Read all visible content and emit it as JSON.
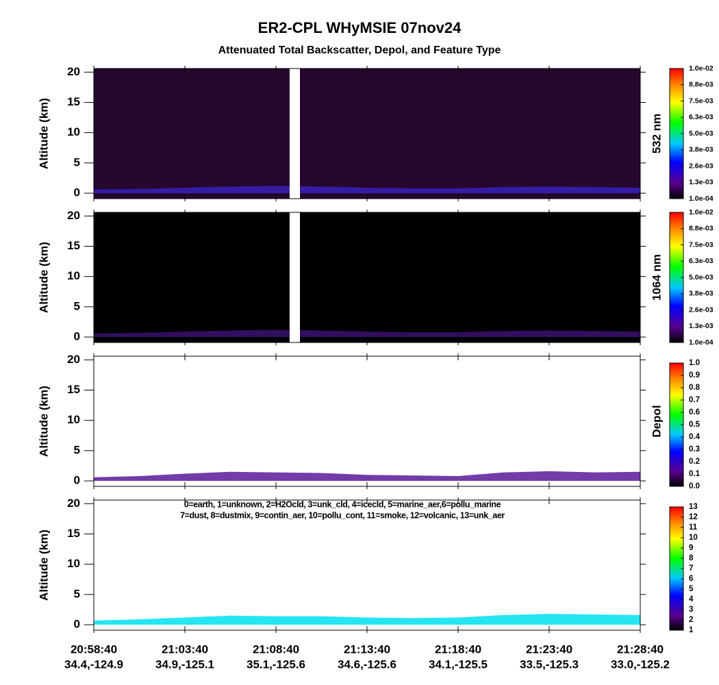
{
  "chart_data": {
    "title": "ER2-CPL WHyMSIE 07nov24",
    "subtitle": "Attenuated Total Backscatter, Depol, and Feature Type",
    "xlim": [
      "20:58:40",
      "21:28:40"
    ],
    "xticks": [
      "20:58:40",
      "21:03:40",
      "21:08:40",
      "21:13:40",
      "21:18:40",
      "21:23:40",
      "21:28:40"
    ],
    "xtick_locations": [
      "34.4,-124.9",
      "34.9,-125.1",
      "35.1,-125.6",
      "34.6,-125.6",
      "34.1,-125.5",
      "33.5,-125.3",
      "33.0,-125.2"
    ],
    "panels": [
      {
        "type": "curtain",
        "ylabel": "Altitude (km)",
        "ylim": [
          -0.9,
          20.6
        ],
        "yticks": [
          0,
          5,
          10,
          15,
          20
        ],
        "background": "#24082e",
        "data_gap": [
          "21:09:25",
          "21:09:59"
        ],
        "colorbar": {
          "label": "532 nm",
          "clim": [
            0.0001,
            0.01
          ],
          "ticks": [
            {
              "value": 0.0001,
              "label": "1.0e-04"
            },
            {
              "value": 0.0013375,
              "label": "1.3e-03"
            },
            {
              "value": 0.002575,
              "label": "2.6e-03"
            },
            {
              "value": 0.0038125,
              "label": "3.8e-03"
            },
            {
              "value": 0.00505,
              "label": "5.0e-03"
            },
            {
              "value": 0.0062875,
              "label": "6.3e-03"
            },
            {
              "value": 0.007525,
              "label": "7.5e-03"
            },
            {
              "value": 0.0087625,
              "label": "8.8e-03"
            },
            {
              "value": 0.01,
              "label": "1.0e-02"
            }
          ]
        },
        "layer": {
          "color": "#3a20b8",
          "x": [
            "20:58:40",
            "21:01:10",
            "21:03:40",
            "21:06:10",
            "21:08:40",
            "21:11:10",
            "21:13:40",
            "21:16:10",
            "21:18:40",
            "21:21:10",
            "21:23:40",
            "21:26:10",
            "21:28:40"
          ],
          "values": [
            0.6,
            0.7,
            0.9,
            1.1,
            1.2,
            1.1,
            0.9,
            0.8,
            0.8,
            1.0,
            1.1,
            1.0,
            0.9
          ]
        }
      },
      {
        "type": "curtain",
        "ylabel": "Altitude (km)",
        "ylim": [
          -0.9,
          20.6
        ],
        "yticks": [
          0,
          5,
          10,
          15,
          20
        ],
        "background": "#000000",
        "data_gap": [
          "21:09:25",
          "21:09:59"
        ],
        "colorbar": {
          "label": "1064 nm",
          "clim": [
            0.0001,
            0.01
          ],
          "ticks": [
            {
              "value": 0.0001,
              "label": "1.0e-04"
            },
            {
              "value": 0.0013375,
              "label": "1.3e-03"
            },
            {
              "value": 0.002575,
              "label": "2.6e-03"
            },
            {
              "value": 0.0038125,
              "label": "3.8e-03"
            },
            {
              "value": 0.00505,
              "label": "5.0e-03"
            },
            {
              "value": 0.0062875,
              "label": "6.3e-03"
            },
            {
              "value": 0.007525,
              "label": "7.5e-03"
            },
            {
              "value": 0.0087625,
              "label": "8.8e-03"
            },
            {
              "value": 0.01,
              "label": "1.0e-02"
            }
          ]
        },
        "layer": {
          "color": "#3a1070",
          "x": [
            "20:58:40",
            "21:01:10",
            "21:03:40",
            "21:06:10",
            "21:08:40",
            "21:11:10",
            "21:13:40",
            "21:16:10",
            "21:18:40",
            "21:21:10",
            "21:23:40",
            "21:26:10",
            "21:28:40"
          ],
          "values": [
            0.6,
            0.7,
            0.9,
            1.1,
            1.2,
            1.1,
            0.9,
            0.8,
            0.8,
            1.0,
            1.1,
            1.0,
            0.9
          ]
        }
      },
      {
        "type": "curtain",
        "ylabel": "Altitude (km)",
        "ylim": [
          -0.9,
          20.6
        ],
        "yticks": [
          0,
          5,
          10,
          15,
          20
        ],
        "background": "#ffffff",
        "colorbar": {
          "label": "Depol",
          "clim": [
            0,
            1
          ],
          "ticks": [
            {
              "value": 0,
              "label": "0.0"
            },
            0.1,
            0.2,
            0.3,
            0.4,
            0.5,
            0.6,
            0.7,
            0.8,
            0.9,
            {
              "value": 1,
              "label": "1.0"
            }
          ]
        },
        "layer": {
          "color": "#5a1a9a",
          "x": [
            "20:58:40",
            "21:01:10",
            "21:03:40",
            "21:06:10",
            "21:08:40",
            "21:11:10",
            "21:13:40",
            "21:16:10",
            "21:18:40",
            "21:21:10",
            "21:23:40",
            "21:26:10",
            "21:28:40"
          ],
          "values": [
            0.6,
            0.8,
            1.2,
            1.5,
            1.4,
            1.3,
            1.0,
            0.9,
            0.8,
            1.4,
            1.6,
            1.4,
            1.5
          ]
        }
      },
      {
        "type": "curtain",
        "ylabel": "Altitude (km)",
        "ylim": [
          -0.9,
          20.6
        ],
        "yticks": [
          0,
          5,
          10,
          15,
          20
        ],
        "background": "#ffffff",
        "legend_lines": [
          "0=earth, 1=unknown, 2=H2Ocld, 3=unk_cld, 4=icecld, 5=marine_aer,6=pollu_marine",
          "7=dust, 8=dustmix, 9=contin_aer, 10=pollu_cont, 11=smoke, 12=volcanic, 13=unk_aer"
        ],
        "colorbar": {
          "clim": [
            1,
            13
          ],
          "ticks": [
            1,
            2,
            3,
            4,
            5,
            6,
            7,
            8,
            9,
            10,
            11,
            12,
            13
          ]
        },
        "layer": {
          "color": "#00e0f0",
          "x": [
            "20:58:40",
            "21:01:10",
            "21:03:40",
            "21:06:10",
            "21:08:40",
            "21:11:10",
            "21:13:40",
            "21:16:10",
            "21:18:40",
            "21:21:10",
            "21:23:40",
            "21:26:10",
            "21:28:40"
          ],
          "values": [
            0.7,
            0.9,
            1.2,
            1.5,
            1.4,
            1.4,
            1.2,
            1.1,
            1.2,
            1.6,
            1.8,
            1.7,
            1.6
          ]
        }
      }
    ]
  }
}
